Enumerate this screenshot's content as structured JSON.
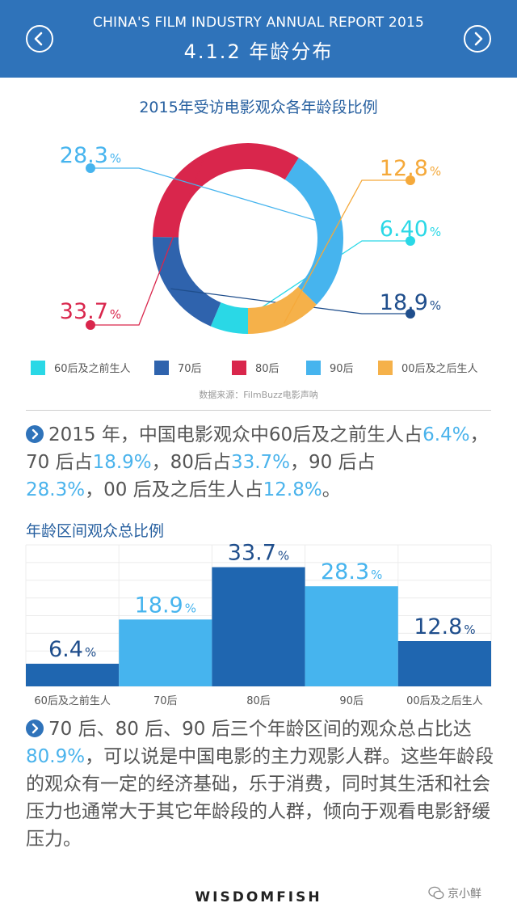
{
  "header": {
    "report_title": "CHINA'S FILM INDUSTRY ANNUAL REPORT 2015",
    "section_title": "4.1.2  年龄分布",
    "prev_icon": "chevron-left-icon",
    "next_icon": "chevron-right-icon"
  },
  "chart_data": [
    {
      "type": "pie",
      "title": "2015年受访电影观众各年龄段比例",
      "donut": true,
      "categories": [
        "60后及之前生人",
        "70后",
        "80后",
        "90后",
        "00后及之后生人"
      ],
      "values": [
        6.4,
        18.9,
        33.7,
        28.3,
        12.8
      ],
      "labels": [
        "6.40",
        "18.9",
        "33.7",
        "28.3",
        "12.8"
      ],
      "unit": "%",
      "colors": [
        "#2ad8e6",
        "#2f63ad",
        "#d9264c",
        "#46b4ee",
        "#f5b14a"
      ],
      "legend_position": "bottom",
      "source": "数据来源：FilmBuzz电影声呐"
    },
    {
      "type": "bar",
      "title": "年龄区间观众总比例",
      "categories": [
        "60后及之前生人",
        "70后",
        "80后",
        "90后",
        "00后及之后生人"
      ],
      "values": [
        6.4,
        18.9,
        33.7,
        28.3,
        12.8
      ],
      "labels": [
        "6.4",
        "18.9",
        "33.7",
        "28.3",
        "12.8"
      ],
      "unit": "%",
      "colors": [
        "#1f66b0",
        "#46b4ee",
        "#1f66b0",
        "#46b4ee",
        "#1f66b0"
      ],
      "label_colors": [
        "#1f4e8c",
        "#46b4ee",
        "#1f4e8c",
        "#46b4ee",
        "#1f4e8c"
      ],
      "ylim": [
        0,
        40
      ],
      "grid": true
    }
  ],
  "paragraph1": {
    "p1": "2015 年，中国电影观众中60后及之前生人占",
    "v1": "6.4%",
    "p2": "，70 后占",
    "v2": "18.9%",
    "p3": "，80后占",
    "v3": "33.7%",
    "p4": "，90 后占",
    "v4": "28.3%",
    "p5": "，00 后及之后生人占",
    "v5": "12.8%",
    "p6": "。"
  },
  "paragraph2": {
    "p1": "70 后、80 后、90 后三个年龄区间的观众总占比达",
    "v1": "80.9%",
    "p2": "，可以说是中国电影的主力观影人群。这些年龄段的观众有一定的经济基础，乐于消费，同时其生活和社会压力也通常大于其它年龄段的人群，倾向于观看电影舒缓压力。"
  },
  "footer": {
    "brand": "WISDOMFISH",
    "watermark": "京小鲜",
    "watermark_icon": "wechat-icon"
  }
}
